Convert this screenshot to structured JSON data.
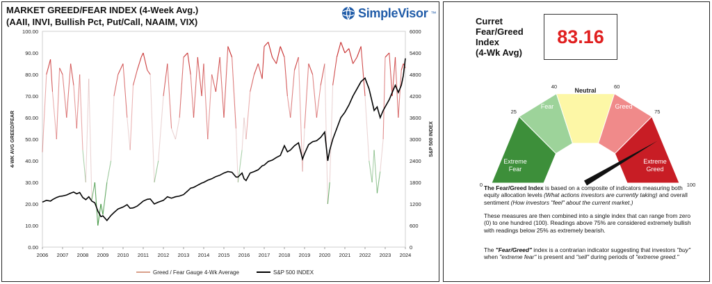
{
  "header": {
    "title_line1": "MARKET GREED/FEAR INDEX (4-Week Avg.)",
    "title_line2": "(AAII, INVI, Bullish Pct, Put/Call, NAAIM, VIX)",
    "brand": "SimpleVisor",
    "brand_tm": "™"
  },
  "chart_data": {
    "type": "line",
    "x": [
      2006.0,
      2006.2,
      2006.4,
      2006.5,
      2006.7,
      2006.85,
      2007.0,
      2007.2,
      2007.4,
      2007.55,
      2007.7,
      2007.85,
      2008.0,
      2008.15,
      2008.3,
      2008.45,
      2008.6,
      2008.75,
      2008.9,
      2009.0,
      2009.2,
      2009.4,
      2009.55,
      2009.75,
      2010.0,
      2010.2,
      2010.35,
      2010.5,
      2010.7,
      2010.9,
      2011.0,
      2011.2,
      2011.35,
      2011.55,
      2011.75,
      2012.0,
      2012.2,
      2012.4,
      2012.6,
      2012.8,
      2013.0,
      2013.2,
      2013.35,
      2013.5,
      2013.7,
      2013.9,
      2014.0,
      2014.2,
      2014.4,
      2014.6,
      2014.8,
      2015.0,
      2015.2,
      2015.4,
      2015.6,
      2015.7,
      2015.9,
      2016.0,
      2016.1,
      2016.3,
      2016.5,
      2016.7,
      2016.9,
      2017.0,
      2017.2,
      2017.4,
      2017.6,
      2017.8,
      2018.0,
      2018.15,
      2018.3,
      2018.5,
      2018.7,
      2018.9,
      2019.0,
      2019.2,
      2019.4,
      2019.6,
      2019.8,
      2020.0,
      2020.15,
      2020.25,
      2020.4,
      2020.6,
      2020.8,
      2021.0,
      2021.2,
      2021.4,
      2021.6,
      2021.8,
      2022.0,
      2022.2,
      2022.35,
      2022.45,
      2022.6,
      2022.75,
      2022.9,
      2023.0,
      2023.2,
      2023.35,
      2023.5,
      2023.65,
      2023.8,
      2023.9,
      2024.0
    ],
    "xlim": [
      2006,
      2024
    ],
    "series": [
      {
        "name": "Greed / Fear Gauge 4-Wk Average",
        "axis": "left",
        "y": [
          44,
          80,
          87,
          72,
          50,
          83,
          80,
          60,
          85,
          75,
          55,
          80,
          45,
          30,
          78,
          22,
          30,
          10,
          20,
          15,
          30,
          40,
          70,
          80,
          85,
          60,
          45,
          75,
          82,
          88,
          90,
          82,
          80,
          30,
          40,
          70,
          85,
          55,
          50,
          60,
          88,
          90,
          80,
          60,
          88,
          70,
          85,
          50,
          80,
          72,
          88,
          60,
          93,
          88,
          55,
          30,
          45,
          60,
          50,
          72,
          80,
          85,
          78,
          93,
          95,
          88,
          85,
          93,
          88,
          70,
          60,
          82,
          88,
          35,
          55,
          85,
          80,
          60,
          75,
          85,
          20,
          30,
          75,
          88,
          95,
          90,
          92,
          85,
          88,
          93,
          70,
          40,
          30,
          45,
          25,
          35,
          50,
          88,
          90,
          70,
          88,
          60,
          82,
          85,
          83
        ],
        "ylim": [
          0,
          100
        ]
      },
      {
        "name": "S&P 500 INDEX",
        "axis": "right",
        "y": [
          1250,
          1300,
          1280,
          1320,
          1380,
          1410,
          1420,
          1450,
          1500,
          1530,
          1480,
          1520,
          1380,
          1320,
          1400,
          1280,
          1230,
          1000,
          850,
          870,
          740,
          880,
          960,
          1060,
          1115,
          1180,
          1080,
          1090,
          1140,
          1230,
          1280,
          1330,
          1340,
          1200,
          1250,
          1300,
          1400,
          1360,
          1400,
          1420,
          1460,
          1560,
          1640,
          1660,
          1720,
          1780,
          1800,
          1860,
          1900,
          1960,
          2000,
          2060,
          2100,
          2080,
          1950,
          1950,
          2060,
          1900,
          1850,
          2060,
          2100,
          2150,
          2260,
          2280,
          2380,
          2420,
          2490,
          2550,
          2820,
          2650,
          2700,
          2820,
          2900,
          2450,
          2600,
          2850,
          2930,
          2960,
          3050,
          3200,
          2400,
          2700,
          3000,
          3300,
          3600,
          3750,
          3950,
          4200,
          4400,
          4600,
          4700,
          4400,
          4050,
          3800,
          3900,
          3600,
          3800,
          3900,
          4100,
          4300,
          4500,
          4300,
          4500,
          4770,
          5250
        ],
        "ylim": [
          0,
          6000
        ]
      }
    ],
    "y_ticks_left": [
      "0.00",
      "10.00",
      "20.00",
      "30.00",
      "40.00",
      "50.00",
      "60.00",
      "70.00",
      "80.00",
      "90.00",
      "100.00"
    ],
    "y_ticks_right": [
      "0",
      "600",
      "1200",
      "1800",
      "2400",
      "3000",
      "3600",
      "4200",
      "4800",
      "5400",
      "6000"
    ],
    "x_ticks": [
      "2006",
      "2007",
      "2008",
      "2009",
      "2010",
      "2011",
      "2012",
      "2013",
      "2014",
      "2015",
      "2016",
      "2017",
      "2018",
      "2019",
      "2020",
      "2021",
      "2022",
      "2023",
      "2024"
    ],
    "ylabel_left": "4-WK AVG GREED/FEAR",
    "ylabel_right": "S&P 500 INDEX",
    "legend_position": "bottom",
    "colors": {
      "greed": "#c62828",
      "fear": "#2e8b2e",
      "sp500": "#000000"
    }
  },
  "gauge": {
    "label_lines": [
      "Curret",
      "Fear/Greed",
      "Index",
      "(4-Wk Avg)"
    ],
    "value": "83.16",
    "needle_value": 83.16,
    "tick_labels": [
      "0",
      "25",
      "40",
      "60",
      "75",
      "100"
    ],
    "segments": [
      {
        "name": "Extreme Fear",
        "from": 0,
        "to": 25,
        "color": "#3d8f3a",
        "text_color": "#ffffff"
      },
      {
        "name": "Fear",
        "from": 25,
        "to": 40,
        "color": "#9dd39a",
        "text_color": "#ffffff"
      },
      {
        "name": "Neutral",
        "from": 40,
        "to": 60,
        "color": "#fdf7a6",
        "text_color": "#222222"
      },
      {
        "name": "Greed",
        "from": 60,
        "to": 75,
        "color": "#f08a8a",
        "text_color": "#ffffff"
      },
      {
        "name": "Extreme Greed",
        "from": 75,
        "to": 100,
        "color": "#c81d25",
        "text_color": "#ffffff"
      }
    ]
  },
  "description": {
    "p1_bold": "The Fear/Greed Index",
    "p1_a": " is based on a composite of indicators measuring both equity allocation levels ",
    "p1_i1": "(What actions investors are currently taking)",
    "p1_b": " and overall sentiment ",
    "p1_i2": "(How investors \"feel\" about the current market.)",
    "p2": "These measures are then combined into a single index that can range from zero (0) to one hundred (100). Readings above 75% are considered extremely bullish with readings below 25% as extremely bearish.",
    "p3_a": "The ",
    "p3_bold": "\"Fear/Greed\"",
    "p3_b": " index is a contrarian indicator suggesting that investors ",
    "p3_i1": "\"buy\"",
    "p3_c": " when ",
    "p3_i2": "\"extreme fear\"",
    "p3_d": " is present and ",
    "p3_i3": "\"sell\"",
    "p3_e": " during periods of ",
    "p3_i4": "\"extreme greed.\""
  }
}
